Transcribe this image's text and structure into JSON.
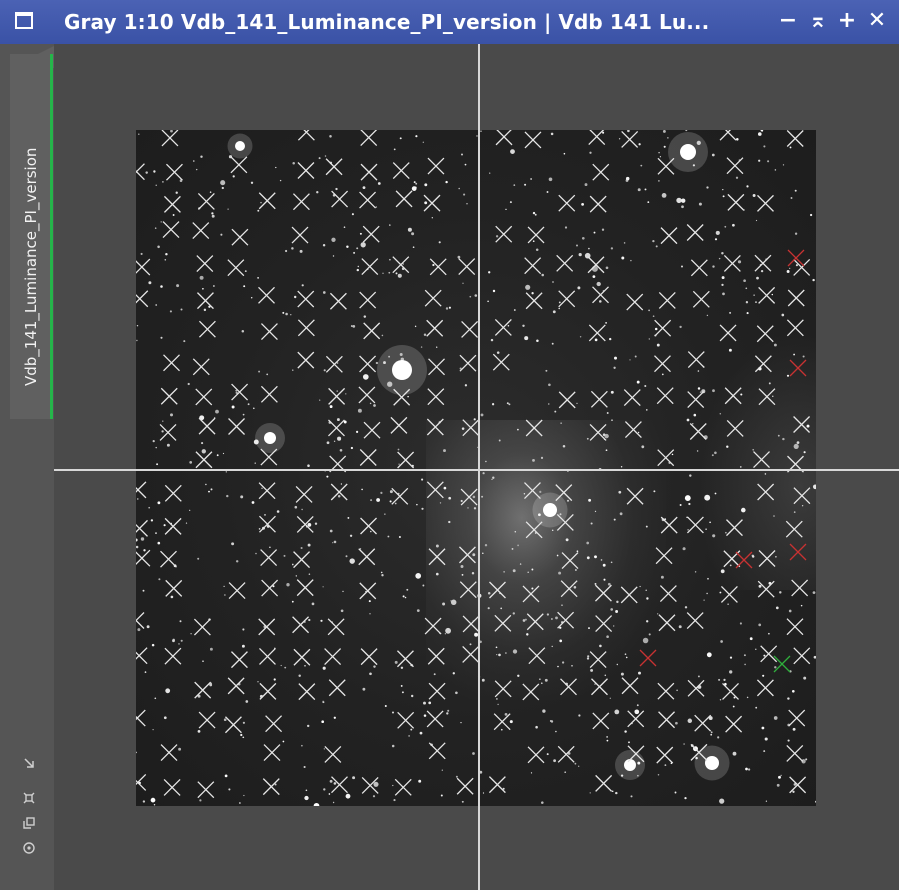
{
  "window": {
    "title": "Gray 1:10 Vdb_141_Luminance_PI_version | Vdb 141 Lu...",
    "buttons": {
      "minimize": "−",
      "shade": "⌅",
      "maximize": "+",
      "close": "✕"
    }
  },
  "sidebar": {
    "tab_label": "Vdb_141_Luminance_PI_version",
    "icons": [
      "fit-view-icon",
      "zoom-icon",
      "copy-view-icon",
      "center-icon"
    ]
  },
  "image": {
    "zoom": "1:10",
    "color_mode": "Gray",
    "marker_colors": {
      "default": "#e6e6e6",
      "rejected": "#c83232",
      "selected": "#2fae3c"
    }
  }
}
